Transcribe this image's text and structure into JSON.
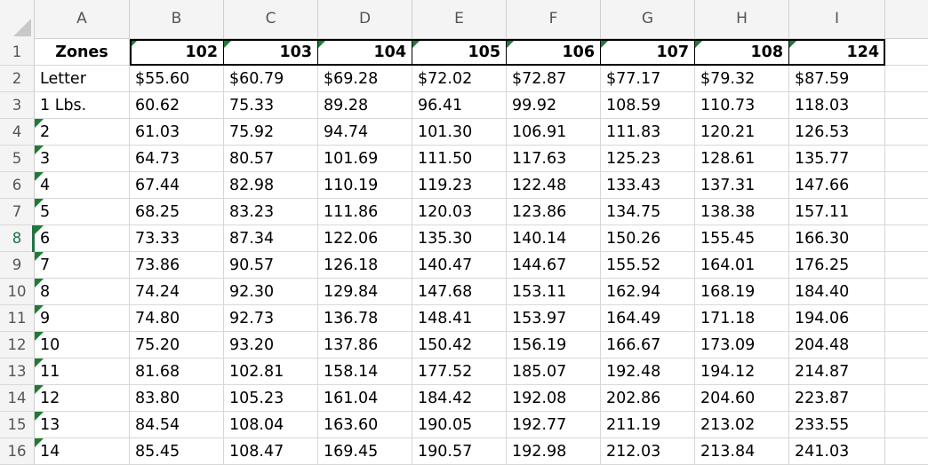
{
  "columns": [
    "A",
    "B",
    "C",
    "D",
    "E",
    "F",
    "G",
    "H",
    "I"
  ],
  "row_numbers": [
    "1",
    "2",
    "3",
    "4",
    "5",
    "6",
    "7",
    "8",
    "9",
    "10",
    "11",
    "12",
    "13",
    "14",
    "15",
    "16"
  ],
  "active_row": 8,
  "header_row": [
    "Zones",
    "102",
    "103",
    "104",
    "105",
    "106",
    "107",
    "108",
    "124"
  ],
  "rows": [
    [
      "Letter",
      "$55.60",
      "$60.79",
      "$69.28",
      "$72.02",
      "$72.87",
      "$77.17",
      "$79.32",
      "$87.59"
    ],
    [
      "1 Lbs.",
      "60.62",
      "75.33",
      "89.28",
      "96.41",
      "99.92",
      "108.59",
      "110.73",
      "118.03"
    ],
    [
      "2",
      "61.03",
      "75.92",
      "94.74",
      "101.30",
      "106.91",
      "111.83",
      "120.21",
      "126.53"
    ],
    [
      "3",
      "64.73",
      "80.57",
      "101.69",
      "111.50",
      "117.63",
      "125.23",
      "128.61",
      "135.77"
    ],
    [
      "4",
      "67.44",
      "82.98",
      "110.19",
      "119.23",
      "122.48",
      "133.43",
      "137.31",
      "147.66"
    ],
    [
      "5",
      "68.25",
      "83.23",
      "111.86",
      "120.03",
      "123.86",
      "134.75",
      "138.38",
      "157.11"
    ],
    [
      "6",
      "73.33",
      "87.34",
      "122.06",
      "135.30",
      "140.14",
      "150.26",
      "155.45",
      "166.30"
    ],
    [
      "7",
      "73.86",
      "90.57",
      "126.18",
      "140.47",
      "144.67",
      "155.52",
      "164.01",
      "176.25"
    ],
    [
      "8",
      "74.24",
      "92.30",
      "129.84",
      "147.68",
      "153.11",
      "162.94",
      "168.19",
      "184.40"
    ],
    [
      "9",
      "74.80",
      "92.73",
      "136.78",
      "148.41",
      "153.97",
      "164.49",
      "171.18",
      "194.06"
    ],
    [
      "10",
      "75.20",
      "93.20",
      "137.86",
      "150.42",
      "156.19",
      "166.67",
      "173.09",
      "204.48"
    ],
    [
      "11",
      "81.68",
      "102.81",
      "158.14",
      "177.52",
      "185.07",
      "192.48",
      "194.12",
      "214.87"
    ],
    [
      "12",
      "83.80",
      "105.23",
      "161.04",
      "184.42",
      "192.08",
      "202.86",
      "204.60",
      "223.87"
    ],
    [
      "13",
      "84.54",
      "108.04",
      "163.60",
      "190.05",
      "192.77",
      "211.19",
      "213.02",
      "233.55"
    ],
    [
      "14",
      "85.45",
      "108.47",
      "169.45",
      "190.57",
      "192.98",
      "212.03",
      "213.84",
      "241.03"
    ]
  ],
  "colors": {
    "accent": "#217346",
    "error_indicator": "#1e7b34",
    "grid": "#d8d8d8",
    "header_bg": "#f4f4f4"
  }
}
